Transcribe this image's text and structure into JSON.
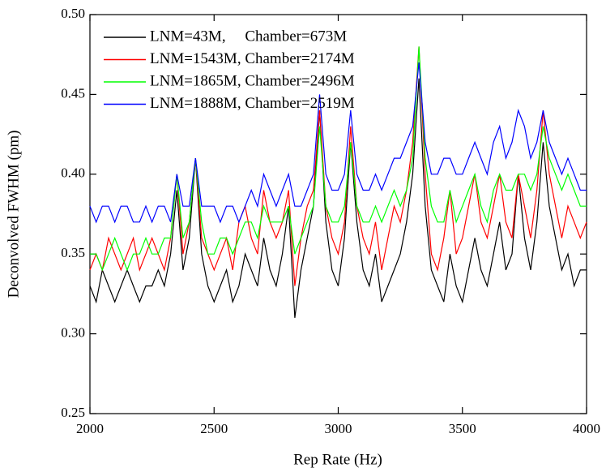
{
  "chart_data": {
    "type": "line",
    "x_label": "Rep Rate (Hz)",
    "y_label": "Deconvolved FWHM (pm)",
    "x": [
      2000,
      2025,
      2050,
      2075,
      2100,
      2125,
      2150,
      2175,
      2200,
      2225,
      2250,
      2275,
      2300,
      2325,
      2350,
      2375,
      2400,
      2425,
      2450,
      2475,
      2500,
      2525,
      2550,
      2575,
      2600,
      2625,
      2650,
      2675,
      2700,
      2725,
      2750,
      2775,
      2800,
      2825,
      2850,
      2875,
      2900,
      2925,
      2950,
      2975,
      3000,
      3025,
      3050,
      3075,
      3100,
      3125,
      3150,
      3175,
      3200,
      3225,
      3250,
      3275,
      3300,
      3325,
      3350,
      3375,
      3400,
      3425,
      3450,
      3475,
      3500,
      3525,
      3550,
      3575,
      3600,
      3625,
      3650,
      3675,
      3700,
      3725,
      3750,
      3775,
      3800,
      3825,
      3850,
      3875,
      3900,
      3925,
      3950,
      3975,
      4000
    ],
    "series": [
      {
        "name": "LNM=43M,     Chamber=673M",
        "color": "#000000",
        "values": [
          0.33,
          0.32,
          0.34,
          0.33,
          0.32,
          0.33,
          0.34,
          0.33,
          0.32,
          0.33,
          0.33,
          0.34,
          0.33,
          0.35,
          0.39,
          0.34,
          0.36,
          0.41,
          0.35,
          0.33,
          0.32,
          0.33,
          0.34,
          0.32,
          0.33,
          0.35,
          0.34,
          0.33,
          0.36,
          0.34,
          0.33,
          0.35,
          0.38,
          0.31,
          0.34,
          0.36,
          0.38,
          0.44,
          0.37,
          0.34,
          0.33,
          0.36,
          0.42,
          0.37,
          0.34,
          0.33,
          0.35,
          0.32,
          0.33,
          0.34,
          0.35,
          0.37,
          0.4,
          0.46,
          0.38,
          0.34,
          0.33,
          0.32,
          0.35,
          0.33,
          0.32,
          0.34,
          0.36,
          0.34,
          0.33,
          0.35,
          0.37,
          0.34,
          0.35,
          0.4,
          0.36,
          0.34,
          0.37,
          0.42,
          0.38,
          0.36,
          0.34,
          0.35,
          0.33,
          0.34,
          0.34
        ]
      },
      {
        "name": "LNM=1543M, Chamber=2174M",
        "color": "#ff0000",
        "values": [
          0.34,
          0.35,
          0.34,
          0.36,
          0.35,
          0.34,
          0.35,
          0.36,
          0.34,
          0.35,
          0.36,
          0.35,
          0.34,
          0.36,
          0.4,
          0.35,
          0.37,
          0.41,
          0.36,
          0.35,
          0.34,
          0.35,
          0.36,
          0.34,
          0.37,
          0.38,
          0.36,
          0.35,
          0.39,
          0.37,
          0.36,
          0.37,
          0.39,
          0.33,
          0.36,
          0.38,
          0.39,
          0.44,
          0.38,
          0.36,
          0.35,
          0.37,
          0.43,
          0.38,
          0.36,
          0.35,
          0.37,
          0.34,
          0.36,
          0.38,
          0.37,
          0.39,
          0.42,
          0.48,
          0.4,
          0.35,
          0.34,
          0.36,
          0.39,
          0.35,
          0.36,
          0.38,
          0.4,
          0.37,
          0.36,
          0.38,
          0.4,
          0.37,
          0.36,
          0.4,
          0.38,
          0.36,
          0.39,
          0.44,
          0.4,
          0.38,
          0.36,
          0.38,
          0.37,
          0.36,
          0.37
        ]
      },
      {
        "name": "LNM=1865M, Chamber=2496M",
        "color": "#00ff00",
        "values": [
          0.35,
          0.35,
          0.34,
          0.35,
          0.36,
          0.35,
          0.34,
          0.35,
          0.35,
          0.36,
          0.35,
          0.35,
          0.36,
          0.36,
          0.4,
          0.36,
          0.37,
          0.41,
          0.37,
          0.35,
          0.35,
          0.36,
          0.36,
          0.35,
          0.36,
          0.37,
          0.37,
          0.36,
          0.38,
          0.37,
          0.37,
          0.37,
          0.38,
          0.35,
          0.36,
          0.37,
          0.38,
          0.43,
          0.38,
          0.37,
          0.37,
          0.38,
          0.42,
          0.38,
          0.37,
          0.37,
          0.38,
          0.37,
          0.38,
          0.39,
          0.38,
          0.39,
          0.41,
          0.48,
          0.41,
          0.38,
          0.37,
          0.37,
          0.39,
          0.37,
          0.38,
          0.39,
          0.4,
          0.38,
          0.37,
          0.39,
          0.4,
          0.39,
          0.39,
          0.4,
          0.4,
          0.39,
          0.4,
          0.43,
          0.41,
          0.4,
          0.39,
          0.4,
          0.39,
          0.38,
          0.38
        ]
      },
      {
        "name": "LNM=1888M, Chamber=2519M",
        "color": "#0000ff",
        "values": [
          0.38,
          0.37,
          0.38,
          0.38,
          0.37,
          0.38,
          0.38,
          0.37,
          0.37,
          0.38,
          0.37,
          0.38,
          0.38,
          0.37,
          0.4,
          0.38,
          0.38,
          0.41,
          0.38,
          0.38,
          0.38,
          0.37,
          0.38,
          0.38,
          0.37,
          0.38,
          0.39,
          0.38,
          0.4,
          0.39,
          0.38,
          0.39,
          0.4,
          0.38,
          0.38,
          0.39,
          0.4,
          0.45,
          0.4,
          0.39,
          0.39,
          0.4,
          0.44,
          0.4,
          0.39,
          0.39,
          0.4,
          0.39,
          0.4,
          0.41,
          0.41,
          0.42,
          0.43,
          0.47,
          0.42,
          0.4,
          0.4,
          0.41,
          0.41,
          0.4,
          0.4,
          0.41,
          0.42,
          0.41,
          0.4,
          0.42,
          0.43,
          0.41,
          0.42,
          0.44,
          0.43,
          0.41,
          0.42,
          0.44,
          0.42,
          0.41,
          0.4,
          0.41,
          0.4,
          0.39,
          0.39
        ]
      }
    ],
    "xlim": [
      2000,
      4000
    ],
    "xticks": [
      2000,
      2500,
      3000,
      3500,
      4000
    ],
    "ylim": [
      0.25,
      0.5
    ],
    "yticks": [
      0.25,
      {
        "value": 0.3,
        "label": "0.30"
      },
      0.35,
      {
        "value": 0.4,
        "label": "0.40"
      },
      0.45,
      {
        "value": 0.5,
        "label": "0.50"
      }
    ],
    "legend": "upper-left"
  }
}
